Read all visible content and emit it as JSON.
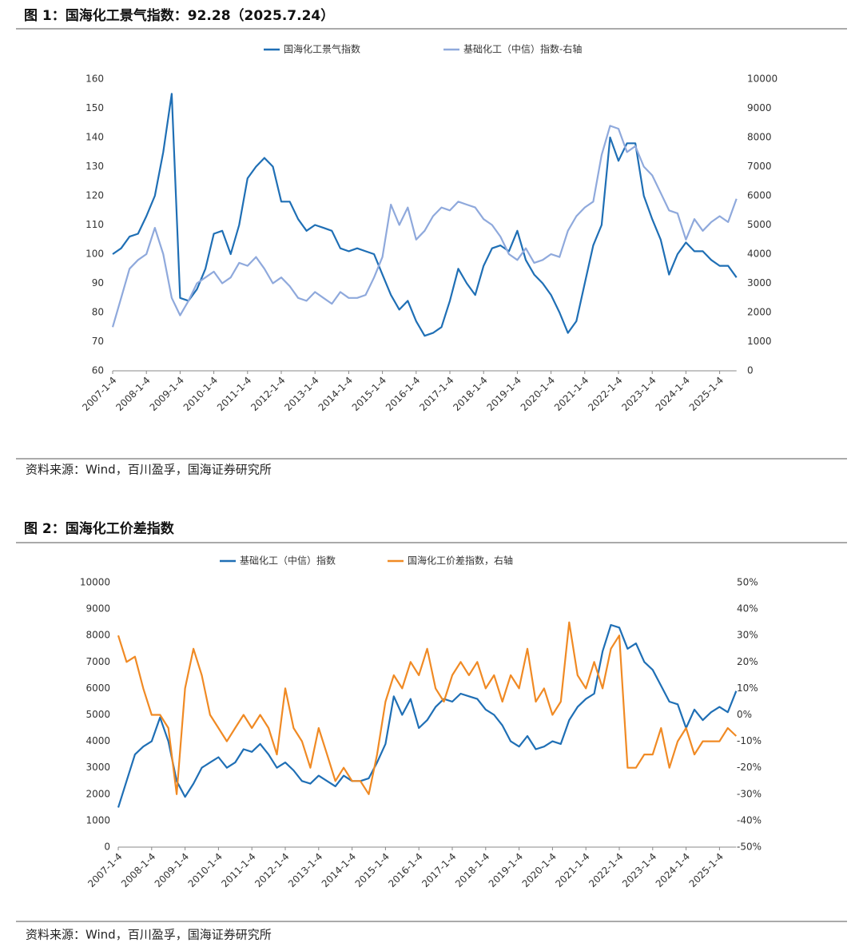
{
  "chart_data": [
    {
      "type": "line",
      "title": "图 1：国海化工景气指数：92.28（2025.7.24）",
      "source": "资料来源：Wind，百川盈孚，国海证券研究所",
      "categories": [
        "2007-1-4",
        null,
        null,
        null,
        "2008-1-4",
        null,
        null,
        null,
        "2009-1-4",
        null,
        null,
        null,
        "2010-1-4",
        null,
        null,
        null,
        "2011-1-4",
        null,
        null,
        null,
        "2012-1-4",
        null,
        null,
        null,
        "2013-1-4",
        null,
        null,
        null,
        "2014-1-4",
        null,
        null,
        null,
        "2015-1-4",
        null,
        null,
        null,
        "2016-1-4",
        null,
        null,
        null,
        "2017-1-4",
        null,
        null,
        null,
        "2018-1-4",
        null,
        null,
        null,
        "2019-1-4",
        null,
        null,
        null,
        "2020-1-4",
        null,
        null,
        null,
        "2021-1-4",
        null,
        null,
        null,
        "2022-1-4",
        null,
        null,
        null,
        "2023-1-4",
        null,
        null,
        null,
        "2024-1-4",
        null,
        null,
        null,
        "2025-1-4",
        null,
        null
      ],
      "series": [
        {
          "name": "国海化工景气指数",
          "color": "#1f6fb5",
          "values": [
            100,
            102,
            106,
            107,
            113,
            120,
            135,
            155,
            85,
            84,
            88,
            95,
            107,
            108,
            100,
            110,
            126,
            130,
            133,
            130,
            118,
            118,
            112,
            108,
            110,
            109,
            108,
            102,
            101,
            102,
            101,
            100,
            93,
            86,
            81,
            84,
            77,
            72,
            73,
            75,
            84,
            95,
            90,
            86,
            96,
            102,
            103,
            101,
            108,
            98,
            93,
            90,
            86,
            80,
            73,
            77,
            90,
            103,
            110,
            140,
            132,
            138,
            138,
            120,
            112,
            105,
            93,
            100,
            104,
            101,
            101,
            98,
            96,
            96,
            92
          ]
        },
        {
          "name": "基础化工（中信）指数-右轴",
          "color": "#8fa9dc",
          "axis": "y2",
          "values": [
            1500,
            2500,
            3500,
            3800,
            4000,
            4900,
            4000,
            2500,
            1900,
            2400,
            3000,
            3200,
            3400,
            3000,
            3200,
            3700,
            3600,
            3900,
            3500,
            3000,
            3200,
            2900,
            2500,
            2400,
            2700,
            2500,
            2300,
            2700,
            2500,
            2500,
            2600,
            3200,
            3900,
            5700,
            5000,
            5600,
            4500,
            4800,
            5300,
            5600,
            5500,
            5800,
            5700,
            5600,
            5200,
            5000,
            4600,
            4000,
            3800,
            4200,
            3700,
            3800,
            4000,
            3900,
            4800,
            5300,
            5600,
            5800,
            7400,
            8400,
            8300,
            7500,
            7700,
            7000,
            6700,
            6100,
            5500,
            5400,
            4500,
            5200,
            4800,
            5100,
            5300,
            5100,
            5900
          ]
        }
      ],
      "ylim": [
        60,
        160
      ],
      "yticks": [
        60,
        70,
        80,
        90,
        100,
        110,
        120,
        130,
        140,
        150,
        160
      ],
      "y2lim": [
        0,
        10000
      ],
      "y2ticks": [
        0,
        1000,
        2000,
        3000,
        4000,
        5000,
        6000,
        7000,
        8000,
        9000,
        10000
      ]
    },
    {
      "type": "line",
      "title": "图 2：国海化工价差指数",
      "source": "资料来源：Wind，百川盈孚，国海证券研究所",
      "categories": [
        "2007-1-4",
        null,
        null,
        null,
        "2008-1-4",
        null,
        null,
        null,
        "2009-1-4",
        null,
        null,
        null,
        "2010-1-4",
        null,
        null,
        null,
        "2011-1-4",
        null,
        null,
        null,
        "2012-1-4",
        null,
        null,
        null,
        "2013-1-4",
        null,
        null,
        null,
        "2014-1-4",
        null,
        null,
        null,
        "2015-1-4",
        null,
        null,
        null,
        "2016-1-4",
        null,
        null,
        null,
        "2017-1-4",
        null,
        null,
        null,
        "2018-1-4",
        null,
        null,
        null,
        "2019-1-4",
        null,
        null,
        null,
        "2020-1-4",
        null,
        null,
        null,
        "2021-1-4",
        null,
        null,
        null,
        "2022-1-4",
        null,
        null,
        null,
        "2023-1-4",
        null,
        null,
        null,
        "2024-1-4",
        null,
        null,
        null,
        "2025-1-4",
        null,
        null
      ],
      "series": [
        {
          "name": "基础化工（中信）指数",
          "color": "#1f6fb5",
          "values": [
            1500,
            2500,
            3500,
            3800,
            4000,
            4900,
            4000,
            2500,
            1900,
            2400,
            3000,
            3200,
            3400,
            3000,
            3200,
            3700,
            3600,
            3900,
            3500,
            3000,
            3200,
            2900,
            2500,
            2400,
            2700,
            2500,
            2300,
            2700,
            2500,
            2500,
            2600,
            3200,
            3900,
            5700,
            5000,
            5600,
            4500,
            4800,
            5300,
            5600,
            5500,
            5800,
            5700,
            5600,
            5200,
            5000,
            4600,
            4000,
            3800,
            4200,
            3700,
            3800,
            4000,
            3900,
            4800,
            5300,
            5600,
            5800,
            7400,
            8400,
            8300,
            7500,
            7700,
            7000,
            6700,
            6100,
            5500,
            5400,
            4500,
            5200,
            4800,
            5100,
            5300,
            5100,
            5900
          ]
        },
        {
          "name": "国海化工价差指数，右轴",
          "color": "#f08a24",
          "axis": "y2",
          "values": [
            30,
            20,
            22,
            10,
            0,
            0,
            -5,
            -30,
            10,
            25,
            15,
            0,
            -5,
            -10,
            -5,
            0,
            -5,
            0,
            -5,
            -15,
            10,
            -5,
            -10,
            -20,
            -5,
            -15,
            -25,
            -20,
            -25,
            -25,
            -30,
            -15,
            5,
            15,
            10,
            20,
            15,
            25,
            10,
            5,
            15,
            20,
            15,
            20,
            10,
            15,
            5,
            15,
            10,
            25,
            5,
            10,
            0,
            5,
            35,
            15,
            10,
            20,
            10,
            25,
            30,
            -20,
            -20,
            -15,
            -15,
            -5,
            -20,
            -10,
            -5,
            -15,
            -10,
            -10,
            -10,
            -5,
            -8
          ]
        }
      ],
      "ylim": [
        0,
        10000
      ],
      "yticks": [
        0,
        1000,
        2000,
        3000,
        4000,
        5000,
        6000,
        7000,
        8000,
        9000,
        10000
      ],
      "y2lim": [
        -50,
        50
      ],
      "y2ticks": [
        {
          "value": -50,
          "label": "-50%"
        },
        {
          "value": -40,
          "label": "-40%"
        },
        {
          "value": -30,
          "label": "-30%"
        },
        {
          "value": -20,
          "label": "-20%"
        },
        {
          "value": -10,
          "label": "-10%"
        },
        {
          "value": 0,
          "label": "0%"
        },
        {
          "value": 10,
          "label": "10%"
        },
        {
          "value": 20,
          "label": "20%"
        },
        {
          "value": 30,
          "label": "30%"
        },
        {
          "value": 40,
          "label": "40%"
        },
        {
          "value": 50,
          "label": "50%"
        }
      ]
    }
  ]
}
